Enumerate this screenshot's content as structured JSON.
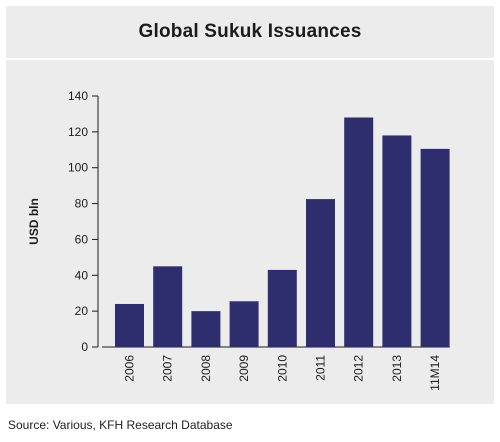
{
  "chart_data": {
    "type": "bar",
    "title": "Global Sukuk Issuances",
    "ylabel": "USD bln",
    "xlabel": "",
    "categories": [
      "2006",
      "2007",
      "2008",
      "2009",
      "2010",
      "2011",
      "2012",
      "2013",
      "11M14"
    ],
    "values": [
      24,
      45,
      20,
      25.5,
      43,
      82.5,
      128,
      118,
      110.5
    ],
    "ylim": [
      0,
      140
    ],
    "yticks": [
      "0",
      "20",
      "40",
      "60",
      "80",
      "100",
      "120",
      "140"
    ],
    "bar_color": "#2e2d6e",
    "grid": false,
    "legend": "none"
  },
  "footer": {
    "source": "Source: Various, KFH Research Database"
  },
  "colors": {
    "panel_background": "#ececed",
    "axis": "#1c1c1c"
  }
}
